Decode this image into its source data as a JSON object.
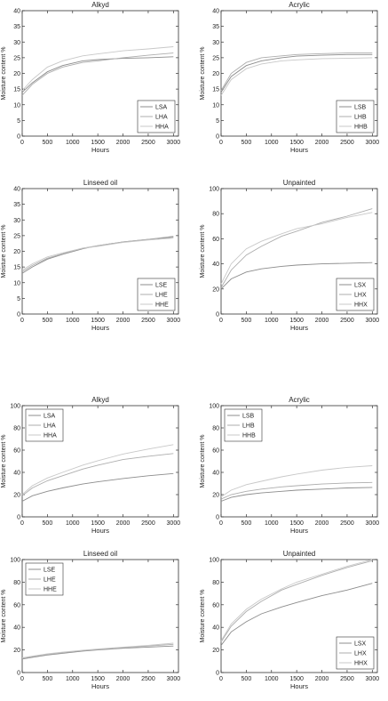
{
  "chart_data": [
    {
      "type": "line",
      "title": "Alkyd",
      "xlabel": "Hours",
      "ylabel": "Moisture content %",
      "xlim": [
        0,
        3100
      ],
      "ylim": [
        0,
        40
      ],
      "xticks": [
        0,
        500,
        1000,
        1500,
        2000,
        2500,
        3000
      ],
      "yticks": [
        0,
        5,
        10,
        15,
        20,
        25,
        30,
        35,
        40
      ],
      "grid": false,
      "legend_position": "bottom-right",
      "series": [
        {
          "name": "LSA",
          "x": [
            0,
            200,
            500,
            800,
            1200,
            1500,
            2000,
            2500,
            3000
          ],
          "y": [
            14,
            17,
            20.5,
            22.5,
            24,
            24.4,
            24.8,
            25,
            25.3
          ]
        },
        {
          "name": "LHA",
          "x": [
            0,
            200,
            500,
            800,
            1200,
            1500,
            2000,
            2500,
            3000
          ],
          "y": [
            13,
            16.5,
            20,
            22,
            23.5,
            24,
            25,
            25.8,
            26.5
          ]
        },
        {
          "name": "HHA",
          "x": [
            0,
            200,
            500,
            800,
            1200,
            1500,
            2000,
            2500,
            3000
          ],
          "y": [
            14.5,
            18,
            22,
            24,
            25.6,
            26.2,
            27.2,
            27.8,
            28.5
          ]
        }
      ]
    },
    {
      "type": "line",
      "title": "Acrylic",
      "xlabel": "Hours",
      "ylabel": "Moisture content %",
      "xlim": [
        0,
        3100
      ],
      "ylim": [
        0,
        40
      ],
      "xticks": [
        0,
        500,
        1000,
        1500,
        2000,
        2500,
        3000
      ],
      "yticks": [
        0,
        5,
        10,
        15,
        20,
        25,
        30,
        35,
        40
      ],
      "grid": false,
      "legend_position": "bottom-right",
      "series": [
        {
          "name": "LSB",
          "x": [
            0,
            200,
            500,
            800,
            1200,
            1500,
            2000,
            2500,
            3000
          ],
          "y": [
            14,
            19,
            22.5,
            24,
            25,
            25.5,
            25.8,
            26,
            26
          ]
        },
        {
          "name": "LHB",
          "x": [
            0,
            200,
            500,
            800,
            1200,
            1500,
            2000,
            2500,
            3000
          ],
          "y": [
            14.5,
            20,
            23.5,
            25,
            25.6,
            26,
            26.3,
            26.5,
            26.5
          ]
        },
        {
          "name": "HHB",
          "x": [
            0,
            200,
            500,
            800,
            1200,
            1500,
            2000,
            2500,
            3000
          ],
          "y": [
            13,
            18,
            21.5,
            23,
            24,
            24.3,
            24.7,
            24.8,
            25
          ]
        }
      ]
    },
    {
      "type": "line",
      "title": "Linseed oil",
      "xlabel": "Hours",
      "ylabel": "Moisture content %",
      "xlim": [
        0,
        3100
      ],
      "ylim": [
        0,
        40
      ],
      "xticks": [
        0,
        500,
        1000,
        1500,
        2000,
        2500,
        3000
      ],
      "yticks": [
        0,
        5,
        10,
        15,
        20,
        25,
        30,
        35,
        40
      ],
      "grid": false,
      "legend_position": "bottom-right",
      "series": [
        {
          "name": "LSE",
          "x": [
            0,
            200,
            500,
            800,
            1200,
            1500,
            2000,
            2500,
            3000
          ],
          "y": [
            13,
            15,
            17.5,
            19,
            20.8,
            21.8,
            23,
            23.8,
            24.5
          ]
        },
        {
          "name": "LHE",
          "x": [
            0,
            200,
            500,
            800,
            1200,
            1500,
            2000,
            2500,
            3000
          ],
          "y": [
            13.5,
            15.5,
            17.8,
            19.2,
            21,
            21.8,
            23,
            23.8,
            24.8
          ]
        },
        {
          "name": "HHE",
          "x": [
            0,
            200,
            500,
            800,
            1200,
            1500,
            2000,
            2500,
            3000
          ],
          "y": [
            14,
            16,
            18.2,
            19.5,
            21,
            21.6,
            22.8,
            23.6,
            24.2
          ]
        }
      ]
    },
    {
      "type": "line",
      "title": "Unpainted",
      "xlabel": "Hours",
      "ylabel": "Moisture content %",
      "xlim": [
        0,
        3100
      ],
      "ylim": [
        0,
        100
      ],
      "xticks": [
        0,
        500,
        1000,
        1500,
        2000,
        2500,
        3000
      ],
      "yticks": [
        0,
        20,
        40,
        60,
        80,
        100
      ],
      "grid": false,
      "legend_position": "bottom-right",
      "series": [
        {
          "name": "LSX",
          "x": [
            0,
            200,
            500,
            800,
            1200,
            1500,
            2000,
            2500,
            3000
          ],
          "y": [
            20,
            28,
            33.5,
            36,
            38,
            39,
            40,
            40.5,
            41
          ]
        },
        {
          "name": "LHX",
          "x": [
            0,
            200,
            500,
            800,
            1200,
            1500,
            2000,
            2500,
            3000
          ],
          "y": [
            21,
            35,
            47,
            54,
            62,
            66,
            73,
            78,
            84
          ]
        },
        {
          "name": "HHX",
          "x": [
            0,
            200,
            500,
            800,
            1200,
            1500,
            2000,
            2500,
            3000
          ],
          "y": [
            24,
            40,
            52,
            58,
            64,
            68,
            72,
            77,
            81
          ]
        }
      ]
    },
    {
      "type": "line",
      "title": "Alkyd",
      "xlabel": "Hours",
      "ylabel": "Moisture content %",
      "xlim": [
        0,
        3100
      ],
      "ylim": [
        0,
        100
      ],
      "xticks": [
        0,
        500,
        1000,
        1500,
        2000,
        2500,
        3000
      ],
      "yticks": [
        0,
        20,
        40,
        60,
        80,
        100
      ],
      "grid": false,
      "legend_position": "top-left",
      "series": [
        {
          "name": "LSA",
          "x": [
            0,
            200,
            500,
            800,
            1200,
            1500,
            2000,
            2500,
            3000
          ],
          "y": [
            14,
            19,
            23,
            26,
            29.5,
            31.5,
            34.5,
            37,
            39
          ]
        },
        {
          "name": "LHA",
          "x": [
            0,
            200,
            500,
            800,
            1200,
            1500,
            2000,
            2500,
            3000
          ],
          "y": [
            19,
            26,
            32.5,
            37,
            43,
            46.5,
            51.5,
            54.5,
            57
          ]
        },
        {
          "name": "HHA",
          "x": [
            0,
            200,
            500,
            800,
            1200,
            1500,
            2000,
            2500,
            3000
          ],
          "y": [
            20,
            28,
            35,
            40,
            46.5,
            50.5,
            56.5,
            61,
            65
          ]
        }
      ]
    },
    {
      "type": "line",
      "title": "Acrylic",
      "xlabel": "Hours",
      "ylabel": "Moisture content %",
      "xlim": [
        0,
        3100
      ],
      "ylim": [
        0,
        100
      ],
      "xticks": [
        0,
        500,
        1000,
        1500,
        2000,
        2500,
        3000
      ],
      "yticks": [
        0,
        20,
        40,
        60,
        80,
        100
      ],
      "grid": false,
      "legend_position": "top-left",
      "series": [
        {
          "name": "LSB",
          "x": [
            0,
            200,
            500,
            800,
            1200,
            1500,
            2000,
            2500,
            3000
          ],
          "y": [
            14,
            17.5,
            20,
            21.5,
            23,
            24,
            25,
            26,
            26.5
          ]
        },
        {
          "name": "LHB",
          "x": [
            0,
            200,
            500,
            800,
            1200,
            1500,
            2000,
            2500,
            3000
          ],
          "y": [
            16,
            20,
            23,
            25,
            27,
            28,
            29.5,
            30.5,
            31
          ]
        },
        {
          "name": "HHB",
          "x": [
            0,
            200,
            500,
            800,
            1200,
            1500,
            2000,
            2500,
            3000
          ],
          "y": [
            18,
            24,
            29,
            32,
            36,
            38.5,
            42,
            44.5,
            46
          ]
        }
      ]
    },
    {
      "type": "line",
      "title": "Linseed oil",
      "xlabel": "Hours",
      "ylabel": "Moisture content %",
      "xlim": [
        0,
        3100
      ],
      "ylim": [
        0,
        100
      ],
      "xticks": [
        0,
        500,
        1000,
        1500,
        2000,
        2500,
        3000
      ],
      "yticks": [
        0,
        20,
        40,
        60,
        80,
        100
      ],
      "grid": false,
      "legend_position": "top-left",
      "series": [
        {
          "name": "LSE",
          "x": [
            0,
            200,
            500,
            800,
            1200,
            1500,
            2000,
            2500,
            3000
          ],
          "y": [
            12,
            13.5,
            15.5,
            17,
            19,
            20,
            21.5,
            22.5,
            23.5
          ]
        },
        {
          "name": "LHE",
          "x": [
            0,
            200,
            500,
            800,
            1200,
            1500,
            2000,
            2500,
            3000
          ],
          "y": [
            12.5,
            14,
            16,
            17.5,
            19.5,
            20.5,
            22,
            23.5,
            25
          ]
        },
        {
          "name": "HHE",
          "x": [
            0,
            200,
            500,
            800,
            1200,
            1500,
            2000,
            2500,
            3000
          ],
          "y": [
            13,
            14.5,
            16.5,
            18,
            19.8,
            20.8,
            22.5,
            24,
            26
          ]
        }
      ]
    },
    {
      "type": "line",
      "title": "Unpainted",
      "xlabel": "Hours",
      "ylabel": "Moisture content %",
      "xlim": [
        0,
        3100
      ],
      "ylim": [
        0,
        100
      ],
      "xticks": [
        0,
        500,
        1000,
        1500,
        2000,
        2500,
        3000
      ],
      "yticks": [
        0,
        20,
        40,
        60,
        80,
        100
      ],
      "grid": false,
      "legend_position": "bottom-right",
      "series": [
        {
          "name": "LSX",
          "x": [
            0,
            200,
            500,
            800,
            1200,
            1500,
            2000,
            2500,
            3000
          ],
          "y": [
            24,
            36,
            45,
            52,
            58,
            62,
            68,
            73,
            79
          ]
        },
        {
          "name": "LHX",
          "x": [
            0,
            200,
            500,
            800,
            1200,
            1500,
            2000,
            2500,
            3000
          ],
          "y": [
            27,
            41,
            54,
            63,
            73,
            78,
            86,
            93,
            99
          ]
        },
        {
          "name": "HHX",
          "x": [
            0,
            200,
            500,
            800,
            1200,
            1500,
            2000,
            2500,
            3000
          ],
          "y": [
            28,
            43,
            56,
            65,
            74,
            80,
            87,
            94,
            100
          ]
        }
      ]
    }
  ]
}
